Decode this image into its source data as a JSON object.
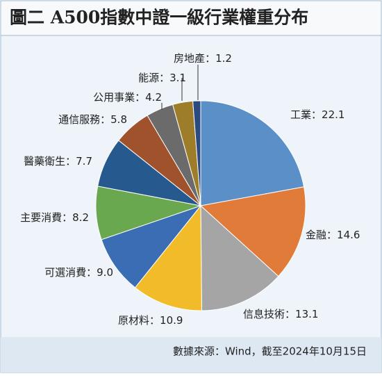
{
  "chart_data": {
    "type": "pie",
    "title": "圖二  A500指數中證一級行業權重分布",
    "categories": [
      "工業",
      "金融",
      "信息技術",
      "原材料",
      "可選消費",
      "主要消費",
      "醫藥衛生",
      "通信服務",
      "公用事業",
      "能源",
      "房地產"
    ],
    "values": [
      22.1,
      14.6,
      13.1,
      10.9,
      9.0,
      8.2,
      7.7,
      5.8,
      4.2,
      3.1,
      1.2
    ],
    "value_labels": [
      "22.1",
      "14.6",
      "13.1",
      "10.9",
      "9.0",
      "8.2",
      "7.7",
      "5.8",
      "4.2",
      "3.1",
      "1.2"
    ],
    "separator": "：",
    "colors": [
      "#5b8fc7",
      "#e07b39",
      "#a5a5a5",
      "#f2bb2a",
      "#3a6db3",
      "#6aa84f",
      "#265a8f",
      "#a0522d",
      "#6b6b6b",
      "#9e7d2a",
      "#2a4a80"
    ],
    "source": "數據來源：Wind，截至2024年10月15日"
  }
}
